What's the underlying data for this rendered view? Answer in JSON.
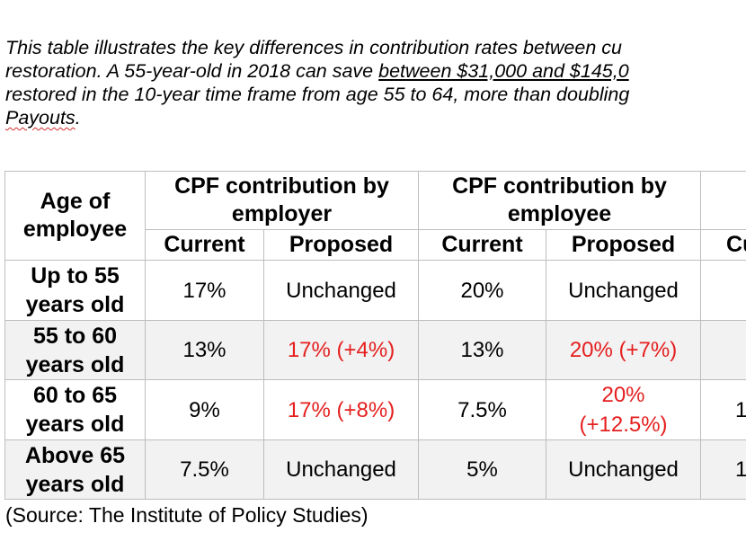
{
  "intro": {
    "line1": "This table illustrates the key differences in contribution rates between cu",
    "line2_pre": "restoration. A 55-year-old in 2018 can save ",
    "line2_link": "between $31,000 and $145,0",
    "line3": "restored in the 10-year time frame from age 55 to 64, more than doubling",
    "line4_word": "Payouts",
    "line4_tail": "."
  },
  "table": {
    "headers": {
      "age": "Age of employee",
      "employer": "CPF contribution by employer",
      "employee": "CPF contribution by employee",
      "current": "Current",
      "proposed": "Proposed",
      "partial_current": "Cu"
    },
    "rows": [
      {
        "age": "Up to 55 years old",
        "er_current": "17%",
        "er_proposed": "Unchanged",
        "ee_current": "20%",
        "ee_proposed": "Unchanged",
        "extra": ""
      },
      {
        "age": "55 to 60 years old",
        "er_current": "13%",
        "er_proposed": "17% (+4%)",
        "ee_current": "13%",
        "ee_proposed": "20% (+7%)",
        "extra": ""
      },
      {
        "age": "60 to 65 years old",
        "er_current": "9%",
        "er_proposed": "17% (+8%)",
        "ee_current": "7.5%",
        "ee_proposed": "20% (+12.5%)",
        "extra": "1"
      },
      {
        "age": "Above 65 years old",
        "er_current": "7.5%",
        "er_proposed": "Unchanged",
        "ee_current": "5%",
        "ee_proposed": "Unchanged",
        "extra": "1"
      }
    ]
  },
  "source": "(Source: The Institute of Policy Studies)",
  "colors": {
    "increase_text": "#e51e1e",
    "row_shade": "#f2f2f2",
    "border": "#bdbdbd",
    "spellcheck": "#d12c2c"
  }
}
